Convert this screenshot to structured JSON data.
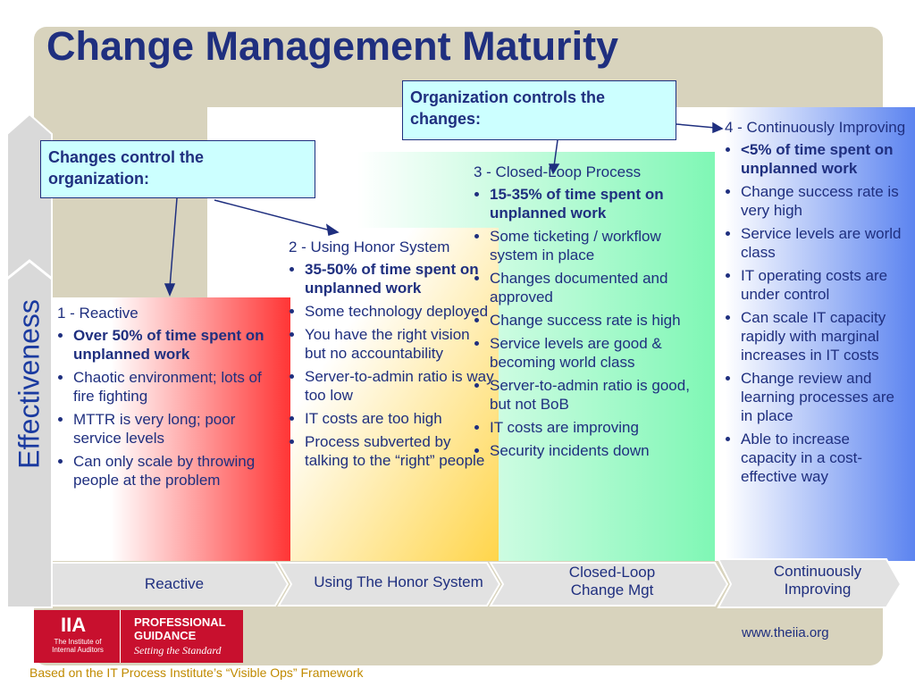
{
  "title": "Change Management Maturity",
  "y_label": "Effectiveness",
  "callouts": [
    "Organization controls the changes:",
    "Changes control the organization:"
  ],
  "levels": [
    {
      "heading": "1 - Reactive",
      "bullets": [
        "Over 50% of time spent on unplanned work",
        "Chaotic environment; lots of fire fighting",
        "MTTR is very long; poor service levels",
        "Can only scale by throwing people at the problem"
      ]
    },
    {
      "heading": "2 - Using Honor System",
      "bullets": [
        "35-50% of time spent on unplanned work",
        "Some technology deployed",
        "You have the right vision but no accountability",
        "Server-to-admin ratio is way too low",
        "IT costs are too high",
        "Process subverted by talking to the “right” people"
      ]
    },
    {
      "heading": "3 - Closed-Loop Process",
      "bullets": [
        "15-35% of time spent on unplanned work",
        "Some ticketing / workflow system in place",
        "Changes documented and approved",
        "Change success rate is high",
        "Service levels are good & becoming world class",
        "Server-to-admin ratio is good, but not BoB",
        "IT costs are improving",
        "Security incidents down"
      ]
    },
    {
      "heading": "4 - Continuously Improving",
      "bullets": [
        "<5% of time spent on unplanned work",
        "Change success rate is very high",
        "Service levels are world class",
        "IT operating costs are under control",
        "Can scale IT capacity rapidly with marginal increases in IT costs",
        "Change review and learning processes are in place",
        "Able to increase capacity in a cost-effective way"
      ]
    }
  ],
  "stages": [
    "Reactive",
    "Using The Honor System",
    "Closed-Loop Change Mgt",
    "Continuously Improving"
  ],
  "logo": {
    "mark": "IIA",
    "org": "The Institute of Internal Auditors",
    "brand": "PROFESSIONAL GUIDANCE",
    "tagline": "Setting the Standard"
  },
  "url": "www.theiia.org",
  "footer": "Based on the IT Process Institute’s “Visible Ops” Framework"
}
